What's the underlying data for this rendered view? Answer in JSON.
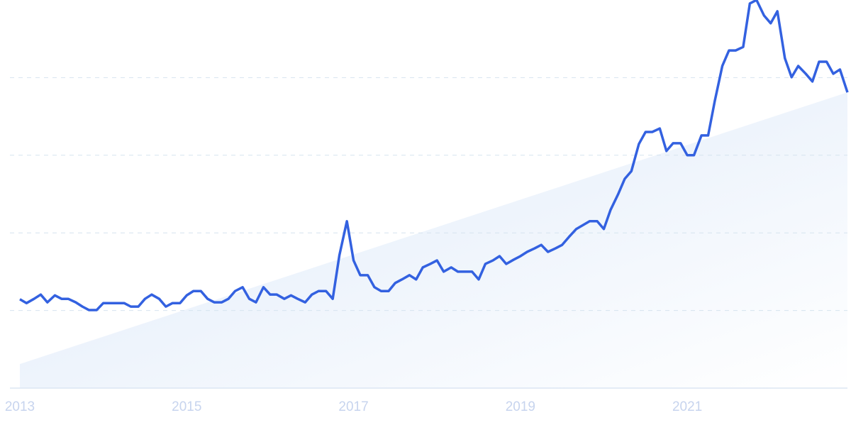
{
  "chart_data": {
    "type": "line",
    "x": [
      2013,
      2013.08,
      2013.17,
      2013.25,
      2013.33,
      2013.42,
      2013.5,
      2013.58,
      2013.67,
      2013.75,
      2013.83,
      2013.92,
      2014,
      2014.08,
      2014.17,
      2014.25,
      2014.33,
      2014.42,
      2014.5,
      2014.58,
      2014.67,
      2014.75,
      2014.83,
      2014.92,
      2015,
      2015.08,
      2015.17,
      2015.25,
      2015.33,
      2015.42,
      2015.5,
      2015.58,
      2015.67,
      2015.75,
      2015.83,
      2015.92,
      2016,
      2016.08,
      2016.17,
      2016.25,
      2016.33,
      2016.42,
      2016.5,
      2016.58,
      2016.67,
      2016.75,
      2016.83,
      2016.92,
      2017,
      2017.08,
      2017.17,
      2017.25,
      2017.33,
      2017.42,
      2017.5,
      2017.58,
      2017.67,
      2017.75,
      2017.83,
      2017.92,
      2018,
      2018.08,
      2018.17,
      2018.25,
      2018.33,
      2018.42,
      2018.5,
      2018.58,
      2018.67,
      2018.75,
      2018.83,
      2018.92,
      2019,
      2019.08,
      2019.17,
      2019.25,
      2019.33,
      2019.42,
      2019.5,
      2019.58,
      2019.67,
      2019.75,
      2019.83,
      2019.92,
      2020,
      2020.08,
      2020.17,
      2020.25,
      2020.33,
      2020.42,
      2020.5,
      2020.58,
      2020.67,
      2020.75,
      2020.83,
      2020.92,
      2021,
      2021.08,
      2021.17,
      2021.25,
      2021.33,
      2021.42,
      2021.5,
      2021.58,
      2021.67,
      2021.75,
      2021.83,
      2021.92,
      2022,
      2022.08,
      2022.17,
      2022.25,
      2022.33,
      2022.42,
      2022.5,
      2022.58,
      2022.67,
      2022.75,
      2022.83,
      2022.92
    ],
    "series": [
      {
        "color": "#3361e0",
        "values": [
          22.9,
          21.9,
          23,
          24.1,
          22.1,
          23.9,
          23,
          23,
          22.1,
          21,
          20.1,
          20.1,
          21.9,
          21.9,
          21.9,
          21.9,
          21,
          21,
          23,
          24.1,
          23,
          21,
          21.9,
          21.9,
          23.9,
          25,
          25,
          23,
          22.1,
          22.1,
          23,
          25,
          26,
          23,
          22.1,
          26,
          24.1,
          24.1,
          23,
          23.9,
          23,
          22.1,
          24.1,
          25,
          25,
          23,
          34.2,
          43,
          32.9,
          29.1,
          29.1,
          26,
          25,
          25,
          27.1,
          28,
          29.1,
          28,
          31.1,
          32,
          32.9,
          30,
          31.1,
          30,
          30,
          30,
          28,
          32,
          32.9,
          34,
          32,
          33.1,
          34,
          35.1,
          36,
          36.9,
          35.1,
          36,
          36.9,
          38.9,
          41,
          42,
          43,
          43,
          41,
          45.9,
          49.9,
          53.9,
          55.9,
          62.9,
          66,
          66,
          66.9,
          61.1,
          63.1,
          63.1,
          60,
          60,
          65.1,
          65.1,
          74,
          83,
          87,
          87,
          87.9,
          99.1,
          100,
          96,
          94,
          97.1,
          85,
          80.1,
          83,
          81,
          79,
          84.1,
          84.1,
          81,
          82.1,
          76.2
        ]
      }
    ],
    "trend": {
      "x": [
        2013,
        2022.92
      ],
      "values": [
        6.2,
        76.2
      ]
    },
    "xlim": [
      2013,
      2022.92
    ],
    "xticks": [
      2013,
      2015,
      2017,
      2019,
      2021
    ],
    "ylim": [
      0,
      100
    ],
    "yticks": [
      0,
      20,
      40,
      60,
      80
    ],
    "grid": true
  }
}
